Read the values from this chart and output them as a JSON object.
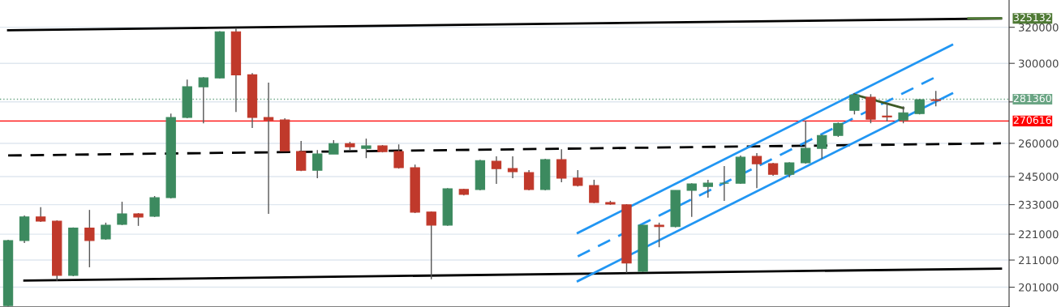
{
  "chart_data": {
    "type": "candlestick",
    "categories": [
      null,
      null,
      null,
      null,
      null,
      null,
      null,
      null,
      null,
      null,
      null,
      null,
      null,
      null,
      null,
      null,
      null,
      null,
      null,
      null,
      null,
      null,
      null,
      null,
      null,
      null,
      null,
      null,
      null,
      null,
      null,
      null,
      null,
      null,
      null,
      null,
      null,
      null,
      null,
      null,
      null,
      null,
      null,
      null,
      null,
      null,
      null,
      null,
      null,
      null,
      null,
      null,
      null,
      null,
      null,
      null,
      null,
      null,
      null,
      null,
      null,
      null
    ],
    "ohlc": [
      [
        194500,
        218800,
        194200,
        218500
      ],
      [
        218500,
        228500,
        217500,
        227900
      ],
      [
        227900,
        231900,
        225900,
        226200
      ],
      [
        226200,
        226500,
        203300,
        205300
      ],
      [
        205300,
        223700,
        205000,
        223400
      ],
      [
        223400,
        230800,
        208300,
        218500
      ],
      [
        219100,
        225600,
        218800,
        224600
      ],
      [
        224900,
        234200,
        224600,
        229200
      ],
      [
        229200,
        229500,
        224300,
        227900
      ],
      [
        228200,
        236600,
        227900,
        235900
      ],
      [
        235900,
        274200,
        235600,
        272300
      ],
      [
        272300,
        291400,
        271900,
        287700
      ],
      [
        287700,
        292700,
        269500,
        292300
      ],
      [
        292300,
        317800,
        291900,
        317400
      ],
      [
        317400,
        319700,
        275000,
        293900
      ],
      [
        293900,
        294800,
        267200,
        272300
      ],
      [
        272300,
        289800,
        229200,
        271100
      ],
      [
        271100,
        271900,
        256200,
        256500
      ],
      [
        256200,
        261100,
        247400,
        247800
      ],
      [
        247800,
        256900,
        244300,
        255100
      ],
      [
        255100,
        261500,
        255100,
        259900
      ],
      [
        259900,
        260700,
        256900,
        258400
      ],
      [
        257700,
        262200,
        253200,
        258800
      ],
      [
        258800,
        259200,
        255800,
        256200
      ],
      [
        256200,
        259500,
        248500,
        248900
      ],
      [
        248900,
        250300,
        229500,
        229900
      ],
      [
        229900,
        230200,
        203900,
        224600
      ],
      [
        224600,
        240000,
        224300,
        239700
      ],
      [
        239400,
        239700,
        236900,
        237300
      ],
      [
        239400,
        252500,
        239000,
        252100
      ],
      [
        251800,
        254000,
        241800,
        248500
      ],
      [
        248500,
        254000,
        244300,
        247100
      ],
      [
        246700,
        247800,
        239000,
        239400
      ],
      [
        239400,
        252900,
        239000,
        252500
      ],
      [
        252500,
        257300,
        242500,
        244300
      ],
      [
        244300,
        247800,
        240700,
        241100
      ],
      [
        241100,
        243600,
        233600,
        233900
      ],
      [
        233900,
        234600,
        232900,
        233200
      ],
      [
        232900,
        233200,
        206200,
        209900
      ],
      [
        206800,
        224600,
        206500,
        224600
      ],
      [
        224600,
        225600,
        215900,
        224000
      ],
      [
        224000,
        239000,
        223700,
        239000
      ],
      [
        239000,
        242100,
        227900,
        241800
      ],
      [
        240700,
        243600,
        235900,
        242100
      ],
      [
        242100,
        249600,
        234600,
        242100
      ],
      [
        242100,
        254400,
        241800,
        253600
      ],
      [
        254000,
        255500,
        240000,
        250700
      ],
      [
        250700,
        251100,
        245300,
        246000
      ],
      [
        246000,
        251400,
        244600,
        251100
      ],
      [
        251100,
        270700,
        250700,
        257700
      ],
      [
        257700,
        264100,
        252900,
        263700
      ],
      [
        263700,
        269900,
        263000,
        269500
      ],
      [
        275800,
        284300,
        273800,
        283500
      ],
      [
        282300,
        283900,
        269500,
        271500
      ],
      [
        273000,
        279400,
        270300,
        272600
      ],
      [
        271100,
        277800,
        269500,
        274600
      ],
      [
        274200,
        281500,
        273800,
        281100
      ],
      [
        281100,
        285600,
        277800,
        280700
      ],
      null,
      null,
      null,
      null
    ],
    "colors": [
      "#3c8a5f",
      "#3c8a5f",
      "#c0392b",
      "#c0392b",
      "#3c8a5f",
      "#c0392b",
      "#3c8a5f",
      "#3c8a5f",
      "#c0392b",
      "#3c8a5f",
      "#3c8a5f",
      "#3c8a5f",
      "#3c8a5f",
      "#3c8a5f",
      "#c0392b",
      "#c0392b",
      "#c0392b",
      "#c0392b",
      "#c0392b",
      "#3c8a5f",
      "#3c8a5f",
      "#c0392b",
      "#3c8a5f",
      "#c0392b",
      "#c0392b",
      "#c0392b",
      "#c0392b",
      "#3c8a5f",
      "#c0392b",
      "#3c8a5f",
      "#c0392b",
      "#c0392b",
      "#c0392b",
      "#3c8a5f",
      "#c0392b",
      "#c0392b",
      "#c0392b",
      "#c0392b",
      "#c0392b",
      "#3c8a5f",
      "#c0392b",
      "#3c8a5f",
      "#3c8a5f",
      "#3c8a5f",
      "#3c8a5f",
      "#3c8a5f",
      "#c0392b",
      "#c0392b",
      "#3c8a5f",
      "#3c8a5f",
      "#3c8a5f",
      "#3c8a5f",
      "#3c8a5f",
      "#c0392b",
      "#c0392b",
      "#3c8a5f",
      "#3c8a5f",
      "#c0392b",
      null,
      null,
      null,
      null
    ],
    "series": [
      {
        "type": "line",
        "color": "#000000",
        "line_style": "solid",
        "values": [
          318300,
          null,
          null,
          null,
          null,
          null,
          null,
          null,
          null,
          null,
          null,
          null,
          null,
          null,
          null,
          null,
          null,
          null,
          null,
          null,
          null,
          null,
          null,
          null,
          null,
          null,
          null,
          null,
          null,
          null,
          null,
          null,
          null,
          null,
          null,
          null,
          null,
          null,
          null,
          null,
          null,
          null,
          null,
          null,
          null,
          null,
          null,
          null,
          null,
          null,
          null,
          null,
          null,
          null,
          null,
          null,
          null,
          null,
          null,
          null,
          null,
          325100
        ]
      },
      {
        "type": "line",
        "color": "#000000",
        "line_style": "solid",
        "values": [
          null,
          203400,
          null,
          null,
          null,
          null,
          null,
          null,
          null,
          null,
          null,
          null,
          null,
          null,
          null,
          null,
          null,
          null,
          null,
          null,
          null,
          null,
          null,
          null,
          null,
          null,
          null,
          null,
          null,
          null,
          null,
          null,
          null,
          null,
          null,
          null,
          null,
          null,
          null,
          null,
          null,
          null,
          null,
          null,
          null,
          null,
          null,
          null,
          null,
          null,
          null,
          null,
          null,
          null,
          null,
          null,
          null,
          null,
          null,
          null,
          null,
          207800
        ]
      },
      {
        "type": "line",
        "color": "#000000",
        "line_style": "dashed",
        "values": [
          254400,
          null,
          null,
          null,
          null,
          null,
          null,
          null,
          null,
          null,
          null,
          null,
          null,
          null,
          null,
          null,
          null,
          null,
          null,
          null,
          null,
          null,
          null,
          null,
          null,
          null,
          null,
          null,
          null,
          null,
          null,
          null,
          null,
          null,
          null,
          null,
          null,
          null,
          null,
          null,
          null,
          null,
          null,
          null,
          null,
          null,
          null,
          null,
          null,
          null,
          null,
          null,
          null,
          null,
          null,
          null,
          null,
          null,
          null,
          null,
          null,
          260000
        ]
      },
      {
        "type": "line",
        "color": "#2196f3",
        "line_style": "solid",
        "values": [
          null,
          null,
          null,
          null,
          null,
          null,
          null,
          null,
          null,
          null,
          null,
          null,
          null,
          null,
          null,
          null,
          null,
          null,
          null,
          null,
          null,
          null,
          null,
          null,
          null,
          null,
          null,
          null,
          null,
          null,
          null,
          null,
          null,
          null,
          null,
          221500,
          null,
          null,
          null,
          null,
          null,
          null,
          null,
          null,
          null,
          null,
          null,
          null,
          null,
          null,
          null,
          null,
          null,
          null,
          null,
          null,
          null,
          null,
          310100,
          null,
          null,
          null
        ]
      },
      {
        "type": "line",
        "color": "#2196f3",
        "line_style": "dashed",
        "values": [
          null,
          null,
          null,
          null,
          null,
          null,
          null,
          null,
          null,
          null,
          null,
          null,
          null,
          null,
          null,
          null,
          null,
          null,
          null,
          null,
          null,
          null,
          null,
          null,
          null,
          null,
          null,
          null,
          null,
          null,
          null,
          null,
          null,
          null,
          null,
          212400,
          null,
          null,
          null,
          null,
          null,
          null,
          null,
          null,
          null,
          null,
          null,
          null,
          null,
          null,
          null,
          null,
          null,
          null,
          null,
          null,
          null,
          292800,
          null,
          null,
          null,
          null
        ]
      },
      {
        "type": "line",
        "color": "#2196f3",
        "line_style": "solid",
        "values": [
          null,
          null,
          null,
          null,
          null,
          null,
          null,
          null,
          null,
          null,
          null,
          null,
          null,
          null,
          null,
          null,
          null,
          null,
          null,
          null,
          null,
          null,
          null,
          null,
          null,
          null,
          null,
          null,
          null,
          null,
          null,
          null,
          null,
          null,
          null,
          203200,
          null,
          null,
          null,
          null,
          null,
          null,
          null,
          null,
          null,
          null,
          null,
          null,
          null,
          null,
          null,
          null,
          null,
          null,
          null,
          null,
          null,
          null,
          284300,
          null,
          null,
          null
        ]
      },
      {
        "type": "line",
        "color": "#3d5a26",
        "line_style": "solid",
        "values": [
          null,
          null,
          null,
          null,
          null,
          null,
          null,
          null,
          null,
          null,
          null,
          null,
          null,
          null,
          null,
          null,
          null,
          null,
          null,
          null,
          null,
          null,
          null,
          null,
          null,
          null,
          null,
          null,
          null,
          null,
          null,
          null,
          null,
          null,
          null,
          null,
          null,
          null,
          null,
          null,
          null,
          null,
          null,
          null,
          null,
          null,
          null,
          null,
          null,
          null,
          null,
          null,
          283700,
          null,
          null,
          276900,
          null,
          null,
          null,
          null,
          null,
          null
        ]
      },
      {
        "type": "line",
        "color": "#4f7a35",
        "line_style": "solid",
        "values": [
          null,
          null,
          null,
          null,
          null,
          null,
          null,
          null,
          null,
          null,
          null,
          null,
          null,
          null,
          null,
          null,
          null,
          null,
          null,
          null,
          null,
          null,
          null,
          null,
          null,
          null,
          null,
          null,
          null,
          null,
          null,
          null,
          null,
          null,
          null,
          null,
          null,
          null,
          null,
          null,
          null,
          null,
          null,
          null,
          null,
          null,
          null,
          null,
          null,
          null,
          null,
          null,
          null,
          null,
          null,
          null,
          null,
          null,
          null,
          325132,
          325132,
          325132
        ],
        "value_labels": [
          null,
          null,
          null,
          null,
          null,
          null,
          null,
          null,
          null,
          null,
          null,
          null,
          null,
          null,
          null,
          null,
          null,
          null,
          null,
          null,
          null,
          null,
          null,
          null,
          null,
          null,
          null,
          null,
          null,
          null,
          null,
          null,
          null,
          null,
          null,
          null,
          null,
          null,
          null,
          null,
          null,
          null,
          null,
          null,
          null,
          null,
          null,
          null,
          null,
          null,
          null,
          null,
          null,
          null,
          null,
          null,
          null,
          null,
          null,
          null,
          null,
          "325132"
        ]
      }
    ],
    "ref_lines": [
      {
        "axis": "y",
        "value": 281360,
        "label": "281360",
        "color": "#6aa584",
        "line_style": "dotted"
      },
      {
        "axis": "y",
        "value": 270616,
        "label": "270616",
        "color": "#ff0000",
        "line_style": "solid"
      }
    ],
    "log": true,
    "ylim": [
      194000,
      336000
    ],
    "yticks": [
      201000,
      211000,
      221000,
      233000,
      245000,
      260000,
      {
        "value": 280000,
        "label": null
      },
      300000,
      320000
    ],
    "grid": "y",
    "tick_labels": "y"
  }
}
